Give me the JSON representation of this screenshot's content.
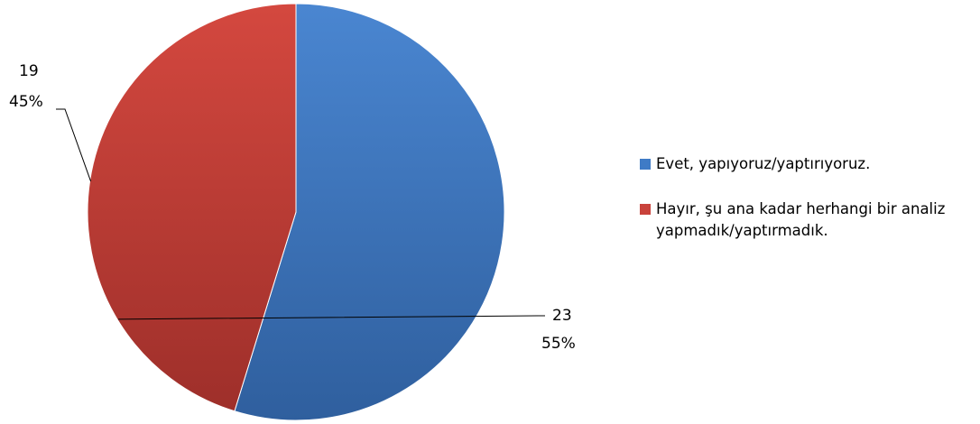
{
  "chart_data": {
    "type": "pie",
    "title": "",
    "slices": [
      {
        "name": "Evet, yapıyoruz/yaptırıyoruz.",
        "value": 23,
        "percent_label": "55%",
        "value_label": "23",
        "color": "#3f7bc6"
      },
      {
        "name": "Hayır, şu ana kadar herhangi bir analiz yapmadık/yaptırmadık.",
        "value": 19,
        "percent_label": "45%",
        "value_label": "19",
        "color": "#c9423b"
      }
    ],
    "start_angle_deg": 0,
    "direction": "clockwise",
    "legend_position": "right"
  },
  "legend": {
    "items": [
      {
        "label": "Evet, yapıyoruz/yaptırıyoruz.",
        "color": "#3f7bc6"
      },
      {
        "label": "Hayır, şu ana kadar herhangi bir analiz yapmadık/yaptırmadık.",
        "color": "#c9423b"
      }
    ]
  }
}
